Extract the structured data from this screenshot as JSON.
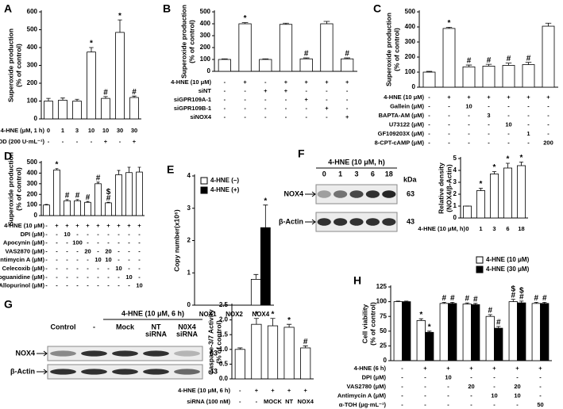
{
  "chart_data": [
    {
      "panel": "A",
      "type": "bar",
      "y_label": [
        "Superoxide production",
        "(% of control)"
      ],
      "ylim": [
        0,
        600
      ],
      "yticks": [
        0,
        100,
        200,
        300,
        400,
        500,
        600
      ],
      "color": "#ffffff",
      "values": [
        100,
        105,
        100,
        375,
        115,
        485,
        120
      ],
      "errors": [
        15,
        12,
        10,
        25,
        10,
        70,
        8
      ],
      "annotations": [
        null,
        null,
        null,
        [
          "*"
        ],
        [
          "#"
        ],
        [
          "*"
        ],
        [
          "#"
        ]
      ],
      "condition_rows": [
        {
          "label": "4-HNE (μM, 1 h)",
          "marks": [
            "0",
            "1",
            "3",
            "10",
            "10",
            "30",
            "30"
          ]
        },
        {
          "label": "SOD (200 U·mL⁻¹)",
          "marks": [
            "-",
            "-",
            "-",
            "-",
            "+",
            "-",
            "+"
          ]
        }
      ]
    },
    {
      "panel": "B",
      "type": "bar",
      "y_label": [
        "Superoxide production",
        "(% of control)"
      ],
      "ylim": [
        0,
        500
      ],
      "yticks": [
        0,
        100,
        200,
        300,
        400,
        500
      ],
      "color": "#ffffff",
      "values": [
        100,
        400,
        100,
        395,
        105,
        400,
        105
      ],
      "errors": [
        5,
        10,
        5,
        10,
        8,
        20,
        8
      ],
      "annotations": [
        null,
        [
          "*"
        ],
        null,
        null,
        [
          "#"
        ],
        null,
        [
          "#"
        ]
      ],
      "condition_rows": [
        {
          "label": "4-HNE (10 μM)",
          "marks": [
            "-",
            "+",
            "-",
            "+",
            "+",
            "+",
            "+"
          ]
        },
        {
          "label": "siNT",
          "marks": [
            "-",
            "-",
            "+",
            "+",
            "-",
            "-",
            "-"
          ]
        },
        {
          "label": "siGPR109A-1",
          "marks": [
            "-",
            "-",
            "-",
            "-",
            "+",
            "-",
            "-"
          ]
        },
        {
          "label": "siGPR109B-1",
          "marks": [
            "-",
            "-",
            "-",
            "-",
            "-",
            "+",
            "-"
          ]
        },
        {
          "label": "siNOX4",
          "marks": [
            "-",
            "-",
            "-",
            "-",
            "-",
            "-",
            "+"
          ]
        }
      ]
    },
    {
      "panel": "C",
      "type": "bar",
      "y_label": [
        "Superoxide production",
        "(% of control)"
      ],
      "ylim": [
        0,
        500
      ],
      "yticks": [
        0,
        100,
        200,
        300,
        400,
        500
      ],
      "color": "#ffffff",
      "values": [
        100,
        390,
        135,
        140,
        145,
        150,
        405
      ],
      "errors": [
        5,
        8,
        12,
        12,
        15,
        15,
        20
      ],
      "annotations": [
        null,
        [
          "*"
        ],
        [
          "#"
        ],
        [
          "#"
        ],
        [
          "#"
        ],
        [
          "#"
        ],
        null
      ],
      "condition_rows": [
        {
          "label": "4-HNE (10 μM)",
          "marks": [
            "-",
            "+",
            "+",
            "+",
            "+",
            "+",
            "+"
          ]
        },
        {
          "label": "Gallein (μM)",
          "marks": [
            "-",
            "-",
            "10",
            "-",
            "-",
            "-",
            "-"
          ]
        },
        {
          "label": "BAPTA-AM (μM)",
          "marks": [
            "-",
            "-",
            "-",
            "3",
            "-",
            "-",
            "-"
          ]
        },
        {
          "label": "U73122 (μM)",
          "marks": [
            "-",
            "-",
            "-",
            "-",
            "10",
            "-",
            "-"
          ]
        },
        {
          "label": "GF109203X (μM)",
          "marks": [
            "-",
            "-",
            "-",
            "-",
            "-",
            "1",
            "-"
          ]
        },
        {
          "label": "8-CPT-cAMP (μM)",
          "marks": [
            "-",
            "-",
            "-",
            "-",
            "-",
            "-",
            "200"
          ]
        }
      ]
    },
    {
      "panel": "D",
      "type": "bar",
      "y_label": [
        "Superoxide production",
        "(% of control)"
      ],
      "ylim": [
        0,
        500
      ],
      "yticks": [
        0,
        100,
        200,
        300,
        400,
        500
      ],
      "color": "#ffffff",
      "values": [
        100,
        430,
        140,
        140,
        125,
        300,
        120,
        385,
        405,
        410
      ],
      "errors": [
        5,
        12,
        10,
        10,
        8,
        15,
        6,
        40,
        50,
        45
      ],
      "annotations": [
        null,
        [
          "*"
        ],
        [
          "#"
        ],
        [
          "#"
        ],
        [
          "#"
        ],
        [
          "#"
        ],
        [
          "$",
          "#"
        ],
        null,
        null,
        null
      ],
      "condition_rows": [
        {
          "label": "4-HNE (10 μM)",
          "marks": [
            "-",
            "+",
            "+",
            "+",
            "+",
            "+",
            "+",
            "+",
            "+",
            "+"
          ]
        },
        {
          "label": "DPI (μM)",
          "marks": [
            "-",
            "-",
            "10",
            "-",
            "-",
            "-",
            "-",
            "-",
            "-",
            "-"
          ]
        },
        {
          "label": "Apocynin (μM)",
          "marks": [
            "-",
            "-",
            "-",
            "100",
            "-",
            "-",
            "-",
            "-",
            "-",
            "-"
          ]
        },
        {
          "label": "VAS2870 (μM)",
          "marks": [
            "-",
            "-",
            "-",
            "-",
            "20",
            "-",
            "20",
            "-",
            "-",
            "-"
          ]
        },
        {
          "label": "Antimycin A (μM)",
          "marks": [
            "-",
            "-",
            "-",
            "-",
            "-",
            "10",
            "10",
            "-",
            "-",
            "-"
          ]
        },
        {
          "label": "Celecoxib (μM)",
          "marks": [
            "-",
            "-",
            "-",
            "-",
            "-",
            "-",
            "-",
            "10",
            "-",
            "-"
          ]
        },
        {
          "label": "Aminoguanidine (μM)",
          "marks": [
            "-",
            "-",
            "-",
            "-",
            "-",
            "-",
            "-",
            "-",
            "10",
            "-"
          ]
        },
        {
          "label": "Allopurinol (μM)",
          "marks": [
            "-",
            "-",
            "-",
            "-",
            "-",
            "-",
            "-",
            "-",
            "-",
            "10"
          ]
        }
      ]
    },
    {
      "panel": "E",
      "type": "bar",
      "y_label": [
        "Copy number(x10⁶)"
      ],
      "ylim": [
        0,
        4
      ],
      "yticks": [
        0,
        1,
        2,
        3,
        4
      ],
      "categories": [
        "NOX1",
        "NOX2",
        "NOX4"
      ],
      "legend": "upper left",
      "series": [
        {
          "name": "4-HNE (–)",
          "color": "#ffffff",
          "values": [
            0,
            0,
            0.8
          ],
          "errors": [
            0,
            0,
            0.15
          ]
        },
        {
          "name": "4-HNE (+)",
          "color": "#000000",
          "values": [
            0,
            0,
            2.4
          ],
          "errors": [
            0,
            0,
            0.7
          ],
          "annotations": [
            null,
            null,
            [
              "*"
            ]
          ]
        }
      ]
    },
    {
      "panel": "F",
      "type": "blot",
      "title": "4-HNE (10 μM, h)",
      "lanes": [
        [
          "0"
        ],
        [
          "1"
        ],
        [
          "3"
        ],
        [
          "6"
        ],
        [
          "18"
        ]
      ],
      "rows": [
        "NOX4",
        "β-Actin"
      ],
      "kda_label": "kDa",
      "kda": [
        63,
        43
      ]
    },
    {
      "panel": "",
      "type": "bar",
      "y_label": [
        "Relative density",
        "(NOX4/β-Actin)"
      ],
      "ylim": [
        0,
        5
      ],
      "yticks": [
        0,
        1,
        2,
        3,
        4,
        5
      ],
      "color": "#ffffff",
      "values": [
        1,
        2.3,
        3.7,
        4.2,
        4.4
      ],
      "errors": [
        0,
        0.2,
        0.2,
        0.4,
        0.3
      ],
      "annotations": [
        null,
        [
          "*"
        ],
        [
          "*"
        ],
        [
          "*"
        ],
        [
          "*"
        ]
      ],
      "condition_rows": [
        {
          "label": "4-HNE (10 μM, h)",
          "marks": [
            "0",
            "1",
            "3",
            "6",
            "18"
          ]
        }
      ]
    },
    {
      "panel": "G",
      "type": "blot",
      "title": "4-HNE (10 μM, 6 h)",
      "lanes": [
        [
          "Control"
        ],
        [
          "-"
        ],
        [
          "Mock"
        ],
        [
          "NT",
          "siRNA"
        ],
        [
          "N0X4",
          "siRNA"
        ]
      ],
      "rows": [
        "NOX4",
        "β-Actin"
      ],
      "kda": [
        63,
        43
      ]
    },
    {
      "panel": "",
      "type": "bar",
      "y_label": [
        "Caspase-3/7 Activity",
        "(% of control)"
      ],
      "ylim": [
        0,
        2.5
      ],
      "yticks": [
        {
          "value": 0,
          "label": "0.0"
        },
        0.5,
        {
          "value": 1,
          "label": "1.0"
        },
        1.5,
        {
          "value": 2,
          "label": "2.0"
        },
        2.5
      ],
      "color": "#ffffff",
      "values": [
        1.0,
        1.85,
        1.8,
        1.75,
        1.05
      ],
      "errors": [
        0.05,
        0.2,
        0.25,
        0.1,
        0.07
      ],
      "annotations": [
        null,
        [
          "*"
        ],
        [
          "*"
        ],
        [
          "*"
        ],
        [
          "#"
        ]
      ],
      "condition_rows": [
        {
          "label": "4-HNE (10 μM, 6 h)",
          "marks": [
            "-",
            "+",
            "+",
            "+",
            "+"
          ]
        },
        {
          "label": "siRNA (100 nM)",
          "marks": [
            "-",
            "-",
            "MOCK",
            "NT",
            "NOX4"
          ]
        }
      ]
    },
    {
      "panel": "H",
      "type": "bar",
      "y_label": [
        "Cell viability",
        "(% of control)"
      ],
      "ylim": [
        0,
        125
      ],
      "yticks": [
        0,
        25,
        50,
        75,
        100,
        125
      ],
      "legend": "upper right",
      "series": [
        {
          "name": "4-HNE (10 μM)",
          "color": "#ffffff",
          "values": [
            100,
            68,
            97,
            96,
            75,
            100,
            97
          ],
          "errors": [
            1,
            3,
            2,
            2,
            3,
            4,
            2
          ],
          "annotations": [
            null,
            [
              "*"
            ],
            [
              "#"
            ],
            [
              "#"
            ],
            [
              "#"
            ],
            [
              "$",
              "#"
            ],
            [
              "#"
            ]
          ]
        },
        {
          "name": "4-HNE (30 μM)",
          "color": "#000000",
          "values": [
            100,
            48,
            97,
            95,
            55,
            98,
            97
          ],
          "errors": [
            1,
            2,
            2,
            2,
            3,
            3,
            2
          ],
          "annotations": [
            null,
            [
              "*"
            ],
            [
              "#"
            ],
            [
              "#"
            ],
            [
              "#"
            ],
            [
              "$",
              "#"
            ],
            [
              "#"
            ]
          ]
        }
      ],
      "condition_rows": [
        {
          "label": "4-HNE (6 h)",
          "marks": [
            "-",
            "+",
            "+",
            "+",
            "+",
            "+",
            "+"
          ]
        },
        {
          "label": "DPI (μM)",
          "marks": [
            "-",
            "-",
            "10",
            "-",
            "-",
            "-",
            "-"
          ]
        },
        {
          "label": "VAS2780 (μM)",
          "marks": [
            "-",
            "-",
            "-",
            "20",
            "-",
            "20",
            "-"
          ]
        },
        {
          "label": "Antimycin A (μM)",
          "marks": [
            "-",
            "-",
            "-",
            "-",
            "10",
            "10",
            "-"
          ]
        },
        {
          "label": "α-TOH (μg·mL⁻¹)",
          "marks": [
            "-",
            "-",
            "-",
            "-",
            "-",
            "-",
            "50"
          ]
        }
      ]
    }
  ]
}
